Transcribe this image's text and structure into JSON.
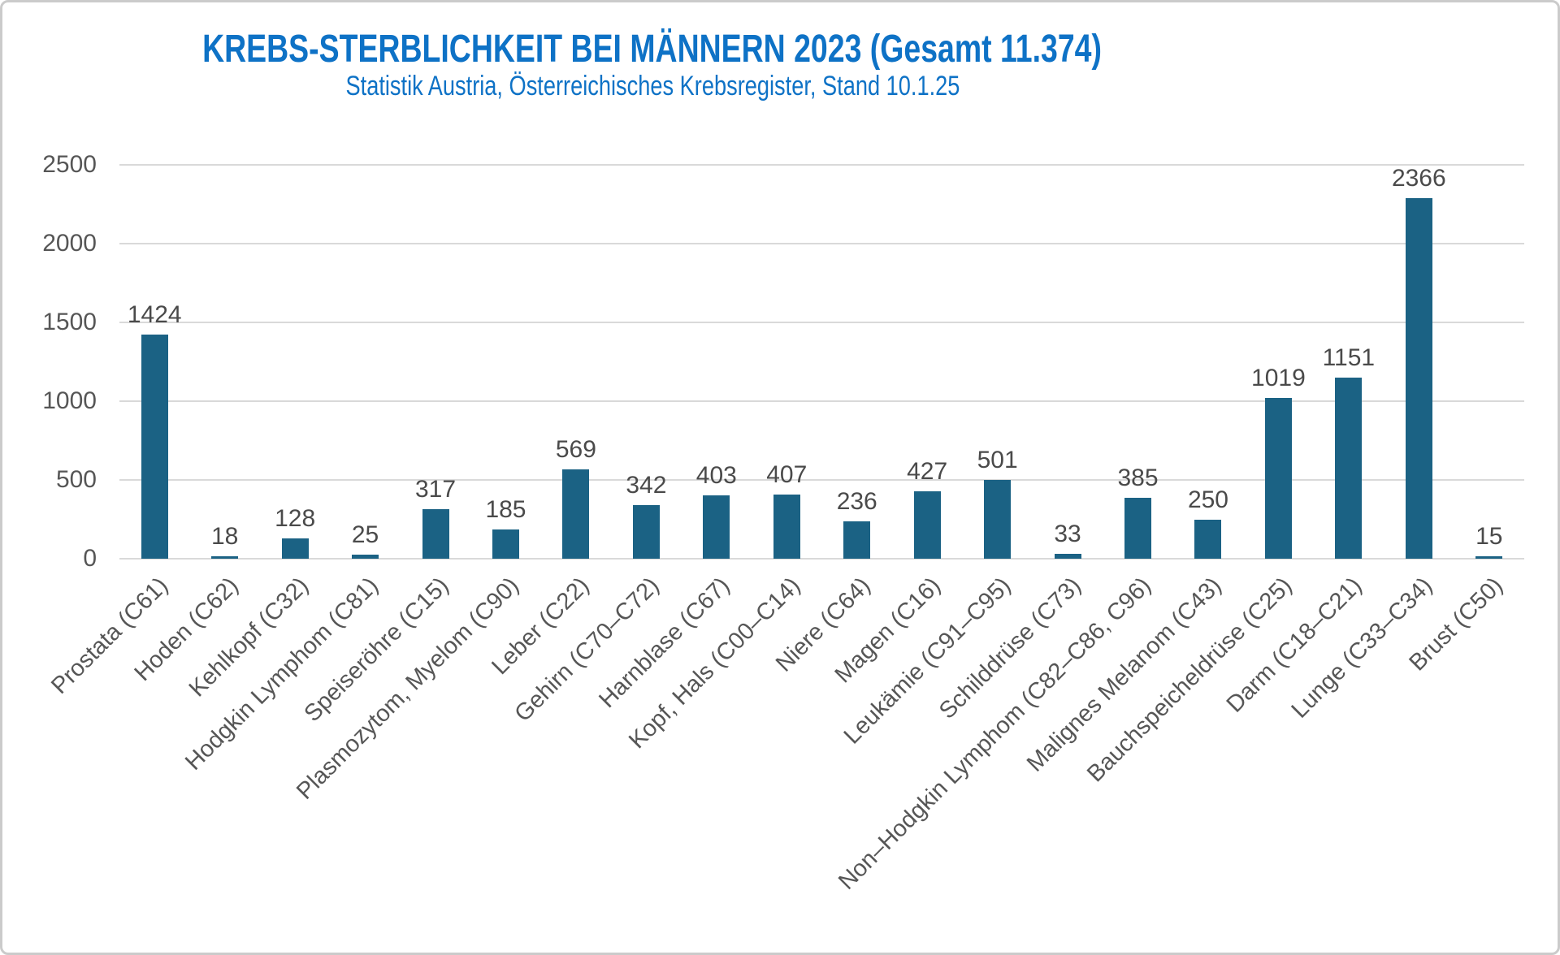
{
  "chart_data": {
    "type": "bar",
    "title": "KREBS-STERBLICHKEIT BEI MÄNNERN 2023 (Gesamt 11.374)",
    "subtitle": "Statistik Austria, Österreichisches Krebsregister, Stand 10.1.25",
    "categories": [
      "Prostata (C61)",
      "Hoden (C62)",
      "Kehlkopf (C32)",
      "Hodgkin Lymphom (C81)",
      "Speiseröhre (C15)",
      "Plasmozytom, Myelom (C90)",
      "Leber (C22)",
      "Gehirn (C70–C72)",
      "Harnblase (C67)",
      "Kopf, Hals (C00–C14)",
      "Niere (C64)",
      "Magen (C16)",
      "Leukämie (C91–C95)",
      "Schilddrüse (C73)",
      "Non–Hodgkin Lymphom (C82–C86, C96)",
      "Malignes Melanom (C43)",
      "Bauchspeicheldrüse (C25)",
      "Darm (C18–C21)",
      "Lunge (C33–C34)",
      "Brust (C50)"
    ],
    "values": [
      1424,
      18,
      128,
      25,
      317,
      185,
      569,
      342,
      403,
      407,
      236,
      427,
      501,
      33,
      385,
      250,
      1019,
      1151,
      2366,
      15
    ],
    "xlabel": "",
    "ylabel": "",
    "ylim": [
      0,
      2500
    ],
    "yticks": [
      0,
      500,
      1000,
      1500,
      2000,
      2500
    ],
    "grid": true,
    "legend": false,
    "colors": {
      "bar": "#1B6284",
      "title": "#0E72C6",
      "gridline": "#D9D9D9",
      "axis_text": "#565656",
      "value_label": "#4A4A4A"
    }
  }
}
